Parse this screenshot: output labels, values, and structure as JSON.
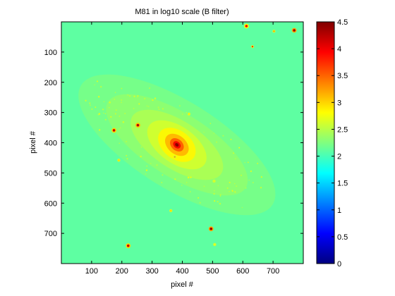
{
  "chart_data": {
    "type": "heatmap",
    "title": "M81 in log10 scale (B filter)",
    "xlabel": "pixel #",
    "ylabel": "pixel #",
    "xlim": [
      0,
      800
    ],
    "ylim": [
      800,
      0
    ],
    "y_axis_reversed": true,
    "xticks": [
      100,
      200,
      300,
      400,
      500,
      600,
      700
    ],
    "yticks": [
      100,
      200,
      300,
      400,
      500,
      600,
      700
    ],
    "colormap": "jet",
    "clim": [
      0,
      4.5
    ],
    "colorbar_ticks": [
      0,
      0.5,
      1,
      1.5,
      2,
      2.5,
      3,
      3.5,
      4,
      4.5
    ],
    "background_level": 2.1,
    "galaxy": {
      "center_x": 382,
      "center_y": 407,
      "peak_value": 4.5,
      "disk_orientation": "tilted, upper-left to lower-right",
      "core_orientation": "tilted"
    },
    "point_sources": [
      {
        "x": 612,
        "y": 14,
        "value": 4.0
      },
      {
        "x": 703,
        "y": 31,
        "value": 3.3
      },
      {
        "x": 770,
        "y": 28,
        "value": 4.4
      },
      {
        "x": 632,
        "y": 82,
        "value": 3.8
      },
      {
        "x": 174,
        "y": 359,
        "value": 4.2
      },
      {
        "x": 253,
        "y": 342,
        "value": 4.3
      },
      {
        "x": 422,
        "y": 305,
        "value": 2.9
      },
      {
        "x": 375,
        "y": 447,
        "value": 3.3
      },
      {
        "x": 190,
        "y": 458,
        "value": 3.0
      },
      {
        "x": 505,
        "y": 527,
        "value": 2.6
      },
      {
        "x": 362,
        "y": 625,
        "value": 3.0
      },
      {
        "x": 495,
        "y": 685,
        "value": 4.4
      },
      {
        "x": 507,
        "y": 737,
        "value": 2.7
      },
      {
        "x": 221,
        "y": 741,
        "value": 4.2
      }
    ]
  },
  "colors": {
    "background": "#ffffff",
    "frame": "#000000"
  }
}
